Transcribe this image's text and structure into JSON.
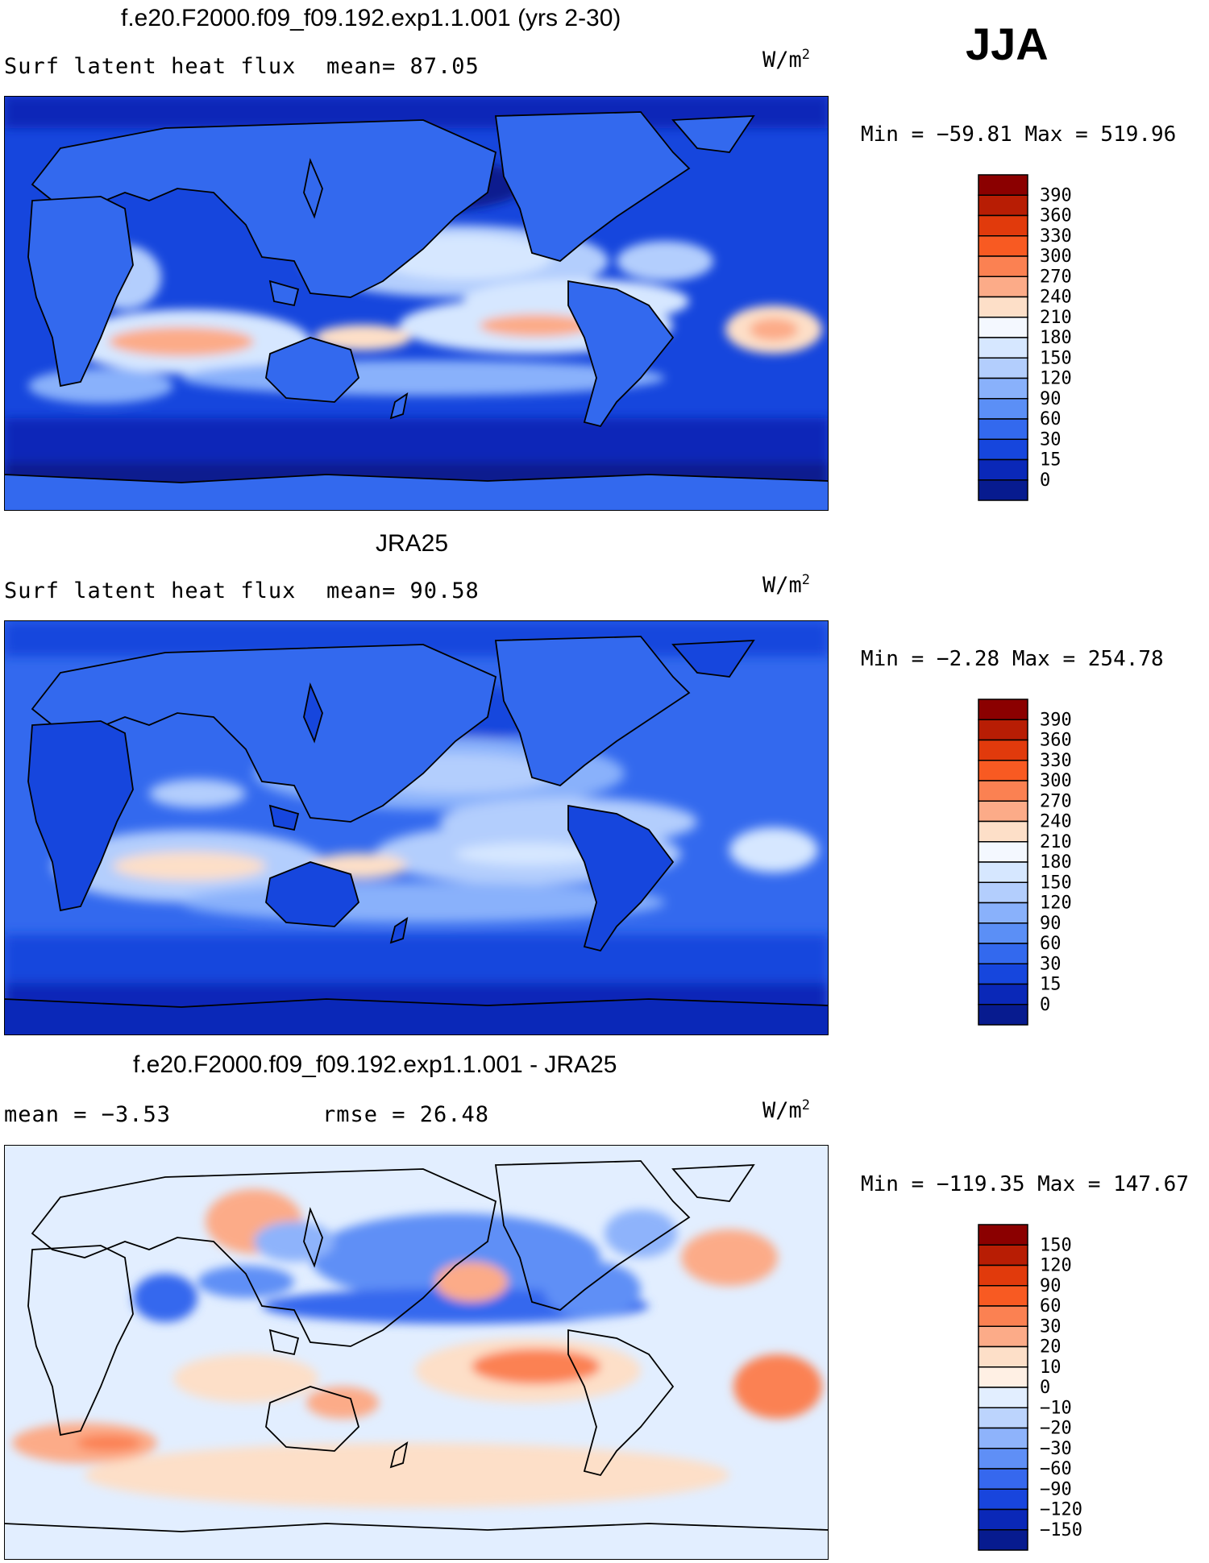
{
  "season": "JJA",
  "units_base": "W/m",
  "units_exp": "2",
  "panels": [
    {
      "title": "f.e20.F2000.f09_f09.192.exp1.1.001 (yrs 2-30)",
      "left_label": "Surf latent heat flux",
      "stat1": "mean=  87.05",
      "stat2": "",
      "minmax": "Min = −59.81 Max = 519.96",
      "levels": [
        "390",
        "360",
        "330",
        "300",
        "270",
        "240",
        "210",
        "180",
        "150",
        "120",
        "90",
        "60",
        "30",
        "15",
        "0"
      ],
      "colors": [
        "#8b0000",
        "#b81d04",
        "#e13a0c",
        "#f85a22",
        "#fb8152",
        "#fcab88",
        "#fddfc8",
        "#f4f8ff",
        "#d6e7ff",
        "#b3cefd",
        "#89b1fb",
        "#5b8ff6",
        "#3369ee",
        "#1646dd",
        "#0a28b8",
        "#071b8f"
      ]
    },
    {
      "title": "JRA25",
      "left_label": "Surf latent heat flux",
      "stat1": "mean=  90.58",
      "stat2": "",
      "minmax": "Min =  −2.28 Max = 254.78",
      "levels": [
        "390",
        "360",
        "330",
        "300",
        "270",
        "240",
        "210",
        "180",
        "150",
        "120",
        "90",
        "60",
        "30",
        "15",
        "0"
      ],
      "colors": [
        "#8b0000",
        "#b81d04",
        "#e13a0c",
        "#f85a22",
        "#fb8152",
        "#fcab88",
        "#fddfc8",
        "#f4f8ff",
        "#d6e7ff",
        "#b3cefd",
        "#89b1fb",
        "#5b8ff6",
        "#3369ee",
        "#1646dd",
        "#0a28b8",
        "#071b8f"
      ]
    },
    {
      "title": "f.e20.F2000.f09_f09.192.exp1.1.001 - JRA25",
      "left_label": "mean =  −3.53",
      "stat1": "rmse =  26.48",
      "stat2": "",
      "minmax": "Min = −119.35 Max = 147.67",
      "levels": [
        "150",
        "120",
        "90",
        "60",
        "30",
        "20",
        "10",
        "0",
        "−10",
        "−20",
        "−30",
        "−60",
        "−90",
        "−120",
        "−150"
      ],
      "colors": [
        "#8b0000",
        "#b81d04",
        "#e13a0c",
        "#f85a22",
        "#fb8152",
        "#fcab88",
        "#fddfc8",
        "#fff0e4",
        "#e2eeff",
        "#bcd4fd",
        "#8eb3fb",
        "#5f8ff6",
        "#3668ee",
        "#1845dd",
        "#0a28b8",
        "#071b8f"
      ]
    }
  ]
}
